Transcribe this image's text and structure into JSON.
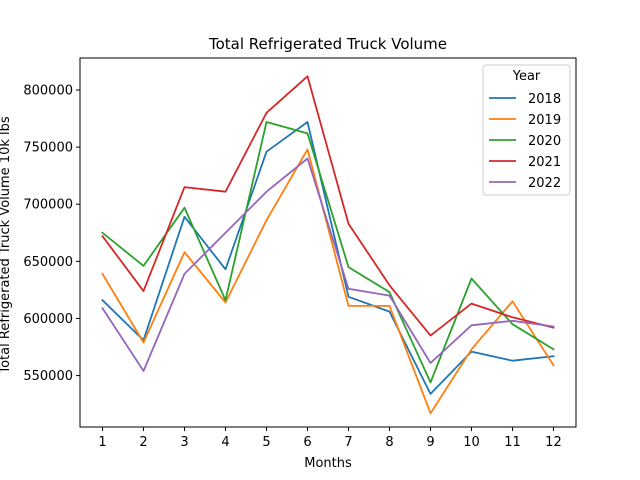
{
  "chart_data": {
    "type": "line",
    "title": "Total Refrigerated Truck Volume",
    "xlabel": "Months",
    "ylabel": "Total Refrigerated Truck Volume 10k lbs",
    "x": [
      1,
      2,
      3,
      4,
      5,
      6,
      7,
      8,
      9,
      10,
      11,
      12
    ],
    "x_tick_labels": [
      "1",
      "2",
      "3",
      "4",
      "5",
      "6",
      "7",
      "8",
      "9",
      "10",
      "11",
      "12"
    ],
    "ylim": [
      505000,
      828000
    ],
    "y_ticks": [
      550000,
      600000,
      650000,
      700000,
      750000,
      800000
    ],
    "y_tick_labels": [
      "550000",
      "600000",
      "650000",
      "700000",
      "750000",
      "800000"
    ],
    "grid": false,
    "legend": {
      "title": "Year",
      "placement": "top-right"
    },
    "series": [
      {
        "name": "2018",
        "color": "#1f77b4",
        "values": [
          616000,
          581000,
          689000,
          643000,
          746000,
          772000,
          619000,
          606000,
          534000,
          571000,
          563000,
          567000
        ]
      },
      {
        "name": "2019",
        "color": "#ff7f0e",
        "values": [
          639000,
          579000,
          658000,
          614000,
          686000,
          748000,
          611000,
          611000,
          517000,
          573000,
          615000,
          559000
        ]
      },
      {
        "name": "2020",
        "color": "#2ca02c",
        "values": [
          675000,
          646000,
          697000,
          616000,
          772000,
          762000,
          645000,
          623000,
          544000,
          635000,
          595000,
          573000
        ]
      },
      {
        "name": "2021",
        "color": "#d62728",
        "values": [
          672000,
          624000,
          715000,
          711000,
          780000,
          812000,
          683000,
          629000,
          585000,
          613000,
          601000,
          592000
        ]
      },
      {
        "name": "2022",
        "color": "#9467bd",
        "values": [
          609000,
          554000,
          639000,
          675000,
          711000,
          740000,
          626000,
          620000,
          561000,
          594000,
          598000,
          593000
        ]
      }
    ]
  }
}
